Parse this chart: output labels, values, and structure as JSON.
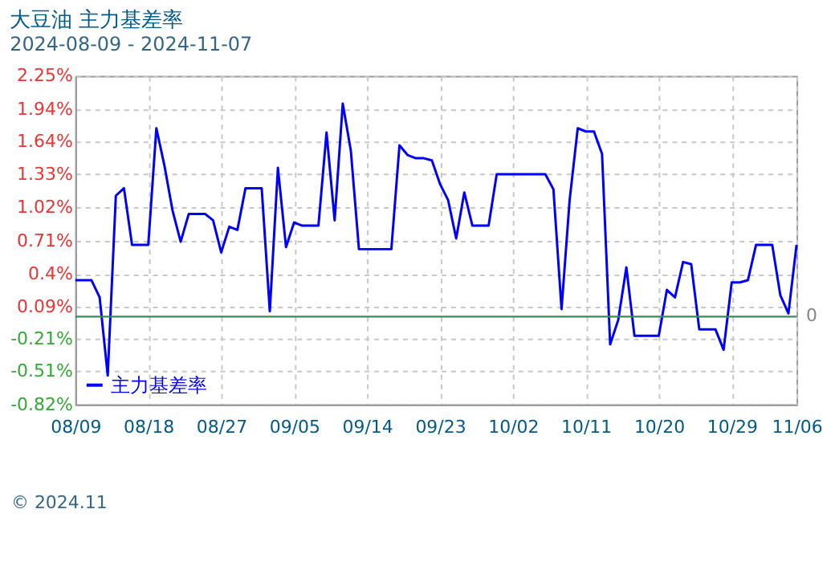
{
  "chart_data": {
    "type": "line",
    "title": "大豆油  主力基差率",
    "subtitle": "2024-08-09 - 2024-11-07",
    "x": [
      "2024-08-09",
      "2024-08-10",
      "2024-08-11",
      "2024-08-12",
      "2024-08-13",
      "2024-08-14",
      "2024-08-15",
      "2024-08-16",
      "2024-08-17",
      "2024-08-18",
      "2024-08-19",
      "2024-08-20",
      "2024-08-21",
      "2024-08-22",
      "2024-08-23",
      "2024-08-24",
      "2024-08-25",
      "2024-08-26",
      "2024-08-27",
      "2024-08-28",
      "2024-08-29",
      "2024-08-30",
      "2024-08-31",
      "2024-09-01",
      "2024-09-02",
      "2024-09-03",
      "2024-09-04",
      "2024-09-05",
      "2024-09-06",
      "2024-09-07",
      "2024-09-08",
      "2024-09-09",
      "2024-09-10",
      "2024-09-11",
      "2024-09-12",
      "2024-09-13",
      "2024-09-14",
      "2024-09-15",
      "2024-09-16",
      "2024-09-17",
      "2024-09-18",
      "2024-09-19",
      "2024-09-20",
      "2024-09-21",
      "2024-09-22",
      "2024-09-23",
      "2024-09-24",
      "2024-09-25",
      "2024-09-26",
      "2024-09-27",
      "2024-09-28",
      "2024-09-29",
      "2024-09-30",
      "2024-10-01",
      "2024-10-02",
      "2024-10-03",
      "2024-10-04",
      "2024-10-05",
      "2024-10-06",
      "2024-10-07",
      "2024-10-08",
      "2024-10-09",
      "2024-10-10",
      "2024-10-11",
      "2024-10-12",
      "2024-10-13",
      "2024-10-14",
      "2024-10-15",
      "2024-10-16",
      "2024-10-17",
      "2024-10-18",
      "2024-10-19",
      "2024-10-20",
      "2024-10-21",
      "2024-10-22",
      "2024-10-23",
      "2024-10-24",
      "2024-10-25",
      "2024-10-26",
      "2024-10-27",
      "2024-10-28",
      "2024-10-29",
      "2024-10-30",
      "2024-10-31",
      "2024-11-01",
      "2024-11-02",
      "2024-11-03",
      "2024-11-04",
      "2024-11-05",
      "2024-11-06"
    ],
    "series": [
      {
        "name": "主力基差率",
        "color": "#0000ff",
        "values": [
          0.34,
          0.34,
          0.34,
          0.18,
          -0.55,
          1.13,
          1.2,
          0.67,
          0.67,
          0.67,
          1.76,
          1.41,
          0.99,
          0.7,
          0.96,
          0.96,
          0.96,
          0.9,
          0.6,
          0.84,
          0.81,
          1.2,
          1.2,
          1.2,
          0.05,
          1.39,
          0.65,
          0.88,
          0.85,
          0.85,
          0.85,
          1.72,
          0.9,
          1.99,
          1.55,
          0.63,
          0.63,
          0.63,
          0.63,
          0.63,
          1.6,
          1.51,
          1.48,
          1.48,
          1.46,
          1.24,
          1.09,
          0.73,
          1.16,
          0.85,
          0.85,
          0.85,
          1.33,
          1.33,
          1.33,
          1.33,
          1.33,
          1.33,
          1.33,
          1.19,
          0.07,
          1.09,
          1.76,
          1.73,
          1.73,
          1.52,
          -0.26,
          -0.03,
          0.46,
          -0.18,
          -0.18,
          -0.18,
          -0.18,
          0.25,
          0.18,
          0.51,
          0.49,
          -0.12,
          -0.12,
          -0.12,
          -0.31,
          0.32,
          0.32,
          0.34,
          0.67,
          0.67,
          0.67,
          0.2,
          0.03,
          0.67
        ]
      }
    ],
    "xlim": [
      "2024-08-09",
      "2024-11-06"
    ],
    "xticks": [
      {
        "value": "2024-08-09",
        "label": "08/09"
      },
      {
        "value": "2024-08-18",
        "label": "08/18"
      },
      {
        "value": "2024-08-27",
        "label": "08/27"
      },
      {
        "value": "2024-09-05",
        "label": "09/05"
      },
      {
        "value": "2024-09-14",
        "label": "09/14"
      },
      {
        "value": "2024-09-23",
        "label": "09/23"
      },
      {
        "value": "2024-10-02",
        "label": "10/02"
      },
      {
        "value": "2024-10-11",
        "label": "10/11"
      },
      {
        "value": "2024-10-20",
        "label": "10/20"
      },
      {
        "value": "2024-10-29",
        "label": "10/29"
      },
      {
        "value": "2024-11-06",
        "label": "11/06"
      }
    ],
    "ylim": [
      -0.82,
      2.25
    ],
    "yticks": [
      {
        "value": 2.25,
        "label": "2.25%"
      },
      {
        "value": 1.94,
        "label": "1.94%"
      },
      {
        "value": 1.64,
        "label": "1.64%"
      },
      {
        "value": 1.33,
        "label": "1.33%"
      },
      {
        "value": 1.02,
        "label": "1.02%"
      },
      {
        "value": 0.71,
        "label": "0.71%"
      },
      {
        "value": 0.4,
        "label": "0.4%"
      },
      {
        "value": 0.09,
        "label": "0.09%"
      },
      {
        "value": -0.21,
        "label": "-0.21%"
      },
      {
        "value": -0.51,
        "label": "-0.51%"
      },
      {
        "value": -0.82,
        "label": "-0.82%"
      }
    ],
    "ref_lines": [
      {
        "axis": "y",
        "value": 0,
        "label": "0",
        "color": "#3a8a5a"
      }
    ],
    "grid": true,
    "legend": "bottom",
    "marker": "none",
    "line_style": "solid",
    "annotations": [
      "© 2024.11"
    ]
  }
}
